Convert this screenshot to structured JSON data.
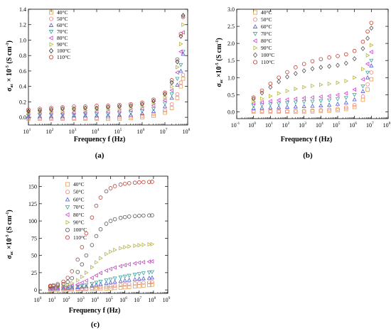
{
  "chart_data": [
    {
      "type": "scatter",
      "panel_label": "(a)",
      "xlabel": "Frequency f (Hz)",
      "ylabel_main": "σ",
      "ylabel_sub": "ac",
      "ylabel_rest": " × 10",
      "ylabel_exp": "-5",
      "ylabel_unit": " (S cm",
      "ylabel_unit_exp": "-1",
      "ylabel_close": ")",
      "x_scale": "log",
      "xlim": [
        10,
        100000000
      ],
      "ylim": [
        -0.1,
        1.4
      ],
      "x_ticks": [
        {
          "value": 10,
          "base": "10",
          "exp": "1"
        },
        {
          "value": 100,
          "base": "10",
          "exp": "2"
        },
        {
          "value": 1000,
          "base": "10",
          "exp": "3"
        },
        {
          "value": 10000,
          "base": "10",
          "exp": "4"
        },
        {
          "value": 100000,
          "base": "10",
          "exp": "5"
        },
        {
          "value": 1000000,
          "base": "10",
          "exp": "6"
        },
        {
          "value": 10000000,
          "base": "10",
          "exp": "7"
        },
        {
          "value": 100000000,
          "base": "10",
          "exp": "8"
        }
      ],
      "y_ticks": [
        {
          "value": 0.0,
          "label": "0.0"
        },
        {
          "value": 0.2,
          "label": "0.2"
        },
        {
          "value": 0.4,
          "label": "0.4"
        },
        {
          "value": 0.6,
          "label": "0.6"
        },
        {
          "value": 0.8,
          "label": "0.8"
        },
        {
          "value": 1.0,
          "label": "1.0"
        },
        {
          "value": 1.2,
          "label": "1.2"
        },
        {
          "value": 1.4,
          "label": "1.4"
        }
      ],
      "legend_position": "top-left",
      "x": [
        10,
        31.6,
        100,
        316,
        1000,
        3160,
        10000,
        31600,
        100000,
        316000,
        1000000,
        3160000,
        10000000,
        20000000,
        35000000,
        50000000,
        63000000
      ],
      "series": [
        {
          "name": "40°C",
          "marker": "square",
          "color": "#E69F4C",
          "values": [
            -0.02,
            -0.02,
            -0.02,
            -0.02,
            -0.02,
            -0.02,
            -0.02,
            -0.02,
            -0.02,
            -0.01,
            0.0,
            0.02,
            0.06,
            0.12,
            0.25,
            0.4,
            0.5
          ]
        },
        {
          "name": "50°C",
          "marker": "circle",
          "color": "#F08080",
          "values": [
            -0.01,
            -0.01,
            -0.01,
            -0.01,
            -0.01,
            -0.01,
            -0.01,
            0.0,
            0.0,
            0.01,
            0.02,
            0.04,
            0.09,
            0.17,
            0.3,
            0.45,
            0.55
          ]
        },
        {
          "name": "60°C",
          "marker": "triangle-up",
          "color": "#4F5BD5",
          "values": [
            0.01,
            0.01,
            0.01,
            0.01,
            0.02,
            0.02,
            0.02,
            0.02,
            0.03,
            0.03,
            0.05,
            0.08,
            0.14,
            0.25,
            0.42,
            0.6,
            0.82
          ]
        },
        {
          "name": "70°C",
          "marker": "triangle-down",
          "color": "#3AA6A0",
          "values": [
            0.02,
            0.03,
            0.03,
            0.03,
            0.03,
            0.04,
            0.04,
            0.04,
            0.05,
            0.06,
            0.08,
            0.11,
            0.18,
            0.3,
            0.5,
            0.68,
            0.85
          ]
        },
        {
          "name": "80°C",
          "marker": "triangle-left",
          "color": "#D33FD3",
          "values": [
            0.04,
            0.05,
            0.05,
            0.05,
            0.06,
            0.06,
            0.07,
            0.07,
            0.08,
            0.09,
            0.11,
            0.15,
            0.22,
            0.35,
            0.58,
            0.85,
            1.1
          ]
        },
        {
          "name": "90°C",
          "marker": "triangle-right",
          "color": "#B5B53A",
          "values": [
            0.06,
            0.07,
            0.08,
            0.08,
            0.09,
            0.09,
            0.1,
            0.1,
            0.11,
            0.12,
            0.14,
            0.18,
            0.26,
            0.4,
            0.65,
            0.95,
            1.2
          ]
        },
        {
          "name": "100°C",
          "marker": "diamond",
          "color": "#333333",
          "values": [
            0.08,
            0.09,
            0.1,
            0.11,
            0.11,
            0.12,
            0.12,
            0.13,
            0.14,
            0.15,
            0.17,
            0.21,
            0.3,
            0.45,
            0.72,
            1.05,
            1.32
          ]
        },
        {
          "name": "110°C",
          "marker": "circle",
          "color": "#C0392B",
          "values": [
            0.1,
            0.11,
            0.12,
            0.13,
            0.14,
            0.14,
            0.15,
            0.15,
            0.16,
            0.17,
            0.19,
            0.23,
            0.32,
            0.48,
            0.75,
            1.08,
            1.3
          ]
        }
      ]
    },
    {
      "type": "scatter",
      "panel_label": "(b)",
      "xlabel": "Frequency f (Hz)",
      "ylabel_main": "σ",
      "ylabel_sub": "ac",
      "ylabel_rest": " ×10",
      "ylabel_exp": "-5",
      "ylabel_unit": " (S cm",
      "ylabel_unit_exp": "-1",
      "ylabel_close": ")",
      "x_scale": "log",
      "xlim": [
        0.1,
        100000000
      ],
      "ylim": [
        -0.2,
        3.0
      ],
      "x_ticks": [
        {
          "value": 0.1,
          "base": "10",
          "exp": "-1"
        },
        {
          "value": 1,
          "base": "10",
          "exp": "0"
        },
        {
          "value": 10,
          "base": "10",
          "exp": "1"
        },
        {
          "value": 100,
          "base": "10",
          "exp": "2"
        },
        {
          "value": 1000,
          "base": "10",
          "exp": "3"
        },
        {
          "value": 10000,
          "base": "10",
          "exp": "4"
        },
        {
          "value": 100000,
          "base": "10",
          "exp": "5"
        },
        {
          "value": 1000000,
          "base": "10",
          "exp": "6"
        },
        {
          "value": 10000000,
          "base": "10",
          "exp": "7"
        },
        {
          "value": 100000000,
          "base": "10",
          "exp": "8"
        }
      ],
      "y_ticks": [
        {
          "value": 0.0,
          "label": "0.0"
        },
        {
          "value": 0.5,
          "label": "0.5"
        },
        {
          "value": 1.0,
          "label": "1.0"
        },
        {
          "value": 1.5,
          "label": "1.5"
        },
        {
          "value": 2.0,
          "label": "2.0"
        },
        {
          "value": 2.5,
          "label": "2.5"
        },
        {
          "value": 3.0,
          "label": "3.0"
        }
      ],
      "legend_position": "top-left",
      "x": [
        1,
        3.16,
        10,
        31.6,
        100,
        316,
        1000,
        3160,
        10000,
        31600,
        100000,
        316000,
        1000000,
        3160000,
        6000000,
        10000000
      ],
      "series": [
        {
          "name": "40°C",
          "marker": "square",
          "color": "#E69F4C",
          "values": [
            0.0,
            0.0,
            0.0,
            0.0,
            0.0,
            0.0,
            0.0,
            0.01,
            0.02,
            0.03,
            0.05,
            0.08,
            0.14,
            0.35,
            0.65,
            0.95
          ]
        },
        {
          "name": "50°C",
          "marker": "circle",
          "color": "#F08080",
          "values": [
            0.02,
            0.02,
            0.02,
            0.02,
            0.02,
            0.03,
            0.03,
            0.04,
            0.05,
            0.07,
            0.09,
            0.13,
            0.2,
            0.45,
            0.8,
            1.15
          ]
        },
        {
          "name": "60°C",
          "marker": "triangle-up",
          "color": "#4F5BD5",
          "values": [
            0.1,
            0.11,
            0.12,
            0.13,
            0.14,
            0.15,
            0.16,
            0.17,
            0.18,
            0.2,
            0.23,
            0.27,
            0.36,
            0.6,
            1.0,
            1.35
          ]
        },
        {
          "name": "70°C",
          "marker": "triangle-down",
          "color": "#3AA6A0",
          "values": [
            0.18,
            0.2,
            0.22,
            0.24,
            0.26,
            0.28,
            0.29,
            0.3,
            0.32,
            0.34,
            0.37,
            0.41,
            0.5,
            0.75,
            1.15,
            1.5
          ]
        },
        {
          "name": "80°C",
          "marker": "triangle-left",
          "color": "#D33FD3",
          "values": [
            0.25,
            0.28,
            0.31,
            0.34,
            0.36,
            0.38,
            0.4,
            0.42,
            0.44,
            0.46,
            0.49,
            0.54,
            0.65,
            0.95,
            1.4,
            1.75
          ]
        },
        {
          "name": "90°C",
          "marker": "triangle-right",
          "color": "#B5B53A",
          "values": [
            0.3,
            0.38,
            0.46,
            0.54,
            0.61,
            0.67,
            0.72,
            0.76,
            0.79,
            0.82,
            0.85,
            0.9,
            1.0,
            1.25,
            1.65,
            1.95
          ]
        },
        {
          "name": "100°C",
          "marker": "diamond",
          "color": "#555555",
          "values": [
            0.38,
            0.55,
            0.72,
            0.88,
            1.02,
            1.12,
            1.2,
            1.26,
            1.3,
            1.33,
            1.36,
            1.42,
            1.55,
            1.85,
            2.15,
            2.45
          ]
        },
        {
          "name": "110°C",
          "marker": "circle",
          "color": "#C0392B",
          "values": [
            0.42,
            0.62,
            0.82,
            1.0,
            1.16,
            1.3,
            1.4,
            1.48,
            1.54,
            1.59,
            1.63,
            1.68,
            1.78,
            2.05,
            2.35,
            2.6
          ]
        }
      ]
    },
    {
      "type": "scatter",
      "panel_label": "(c)",
      "xlabel": "Frequency f (Hz)",
      "ylabel_main": "σ",
      "ylabel_sub": "ac",
      "ylabel_rest": " ×10",
      "ylabel_exp": "-5",
      "ylabel_unit": " (S cm",
      "ylabel_unit_exp": "-1",
      "ylabel_close": ")",
      "x_scale": "log",
      "xlim": [
        1,
        1000000000
      ],
      "ylim": [
        -5,
        165
      ],
      "x_ticks": [
        {
          "value": 1,
          "base": "10",
          "exp": "0"
        },
        {
          "value": 10,
          "base": "10",
          "exp": "1"
        },
        {
          "value": 100,
          "base": "10",
          "exp": "2"
        },
        {
          "value": 1000,
          "base": "10",
          "exp": "3"
        },
        {
          "value": 10000,
          "base": "10",
          "exp": "4"
        },
        {
          "value": 100000,
          "base": "10",
          "exp": "5"
        },
        {
          "value": 1000000,
          "base": "10",
          "exp": "6"
        },
        {
          "value": 10000000,
          "base": "10",
          "exp": "7"
        },
        {
          "value": 100000000,
          "base": "10",
          "exp": "8"
        },
        {
          "value": 1000000000,
          "base": "10",
          "exp": "9"
        }
      ],
      "y_ticks": [
        {
          "value": 0,
          "label": "0"
        },
        {
          "value": 25,
          "label": "25"
        },
        {
          "value": 50,
          "label": "50"
        },
        {
          "value": 75,
          "label": "75"
        },
        {
          "value": 100,
          "label": "100"
        },
        {
          "value": 125,
          "label": "125"
        },
        {
          "value": 150,
          "label": "150"
        }
      ],
      "legend_position": "top-left",
      "x": [
        6,
        10,
        20,
        50,
        100,
        200,
        500,
        1000,
        2000,
        5000,
        10000,
        20000,
        50000,
        100000,
        200000,
        500000,
        1000000,
        2000000,
        5000000,
        10000000,
        20000000,
        50000000,
        80000000
      ],
      "series": [
        {
          "name": "40°C",
          "marker": "square",
          "color": "#E69F4C",
          "values": [
            0.5,
            0.5,
            0.5,
            0.6,
            0.6,
            0.7,
            0.8,
            0.9,
            1.0,
            1.2,
            1.4,
            1.7,
            2.0,
            2.4,
            2.8,
            3.3,
            3.8,
            4.3,
            5.0,
            5.6,
            6.2,
            7.0,
            7.6
          ]
        },
        {
          "name": "50°C",
          "marker": "circle",
          "color": "#F08080",
          "values": [
            1.0,
            1.0,
            1.1,
            1.2,
            1.3,
            1.5,
            1.7,
            2.0,
            2.3,
            2.8,
            3.3,
            3.9,
            4.6,
            5.3,
            6.0,
            7.0,
            7.8,
            8.5,
            9.3,
            10.0,
            10.5,
            11.2,
            11.6
          ]
        },
        {
          "name": "60°C",
          "marker": "triangle-up",
          "color": "#4F5BD5",
          "values": [
            2.0,
            2.1,
            2.2,
            2.4,
            2.7,
            3.1,
            3.6,
            4.3,
            5.1,
            6.2,
            7.3,
            8.4,
            9.6,
            10.6,
            11.6,
            12.7,
            13.6,
            14.4,
            15.3,
            16.0,
            16.6,
            17.3,
            17.7
          ]
        },
        {
          "name": "70°C",
          "marker": "triangle-down",
          "color": "#3AA6A0",
          "values": [
            2.5,
            2.6,
            2.8,
            3.1,
            3.5,
            4.1,
            5.0,
            6.0,
            7.3,
            9.0,
            10.6,
            12.2,
            14.0,
            15.4,
            16.8,
            18.4,
            19.6,
            20.8,
            22.2,
            23.3,
            24.3,
            25.4,
            26.0
          ]
        },
        {
          "name": "80°C",
          "marker": "triangle-left",
          "color": "#D33FD3",
          "values": [
            3.0,
            3.2,
            3.5,
            4.0,
            4.8,
            6.0,
            8.0,
            10.5,
            13.5,
            17.5,
            21.0,
            24.5,
            28.0,
            30.5,
            32.5,
            34.5,
            36.0,
            37.2,
            38.5,
            39.5,
            40.3,
            41.0,
            41.4
          ]
        },
        {
          "name": "90°C",
          "marker": "triangle-right",
          "color": "#B5B53A",
          "values": [
            4.0,
            4.3,
            5.0,
            6.0,
            7.5,
            10.0,
            14.0,
            19.0,
            25.0,
            33.0,
            40.0,
            46.0,
            52.0,
            55.5,
            58.0,
            60.5,
            62.0,
            63.0,
            64.0,
            64.8,
            65.4,
            66.0,
            66.3
          ]
        },
        {
          "name": "100°C",
          "marker": "circle",
          "color": "#555555",
          "values": [
            5.0,
            5.5,
            6.5,
            8.5,
            11.5,
            17.0,
            26.0,
            37.0,
            50.0,
            65.0,
            78.0,
            88.0,
            96.0,
            100.0,
            102.5,
            104.5,
            105.6,
            106.4,
            107.0,
            107.5,
            107.8,
            108.0,
            108.2
          ]
        },
        {
          "name": "110°C",
          "marker": "circle",
          "color": "#C0392B",
          "values": [
            6.0,
            6.8,
            8.5,
            12.0,
            17.5,
            27.0,
            44.0,
            62.0,
            82.0,
            105.0,
            122.0,
            134.0,
            143.0,
            147.5,
            150.5,
            152.8,
            154.0,
            154.8,
            155.5,
            156.0,
            156.3,
            156.6,
            156.8
          ]
        }
      ]
    }
  ]
}
